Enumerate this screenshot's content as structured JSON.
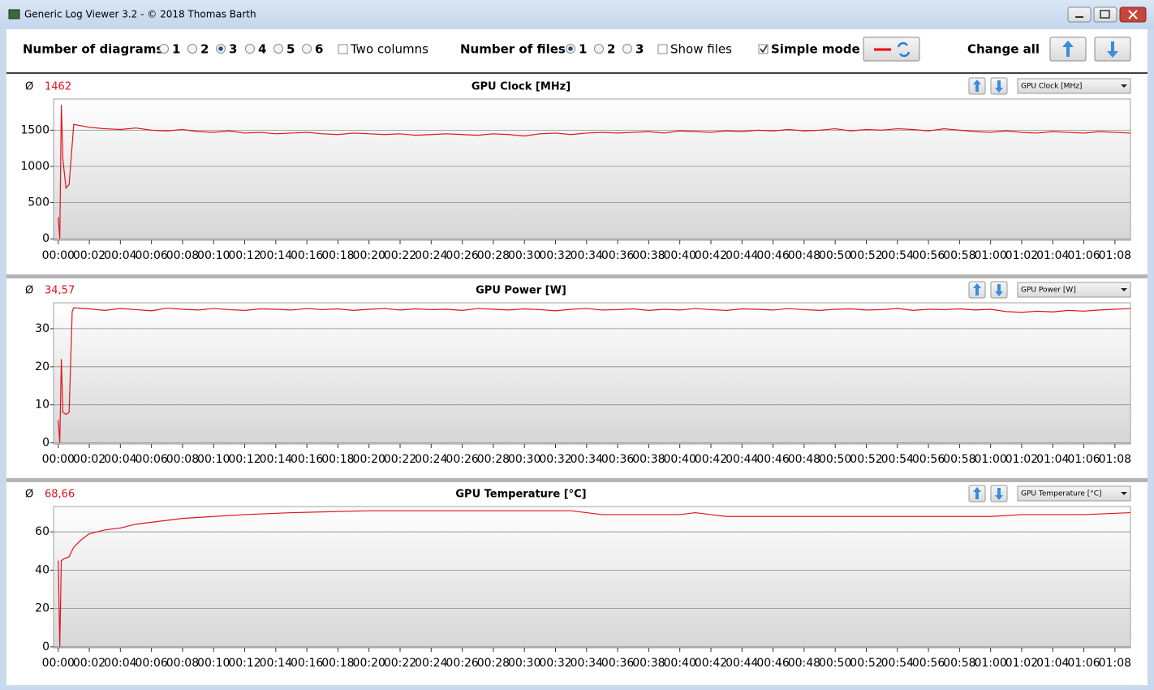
{
  "window": {
    "title": "Generic Log Viewer 3.2 - © 2018 Thomas Barth"
  },
  "toolbar": {
    "diagrams_label": "Number of diagrams",
    "diagram_options": [
      "1",
      "2",
      "3",
      "4",
      "5",
      "6"
    ],
    "two_columns": "Two columns",
    "files_label": "Number of files",
    "file_options": [
      "1",
      "2",
      "3"
    ],
    "show_files": "Show files",
    "simple_mode": "Simple mode",
    "change_all": "Change all"
  },
  "chart_data": [
    {
      "type": "line",
      "title": "GPU Clock [MHz]",
      "avg_symbol": "Ø",
      "avg": "1462",
      "selector": "GPU Clock [MHz]",
      "x": [
        0,
        0.1,
        0.2,
        0.3,
        0.5,
        0.7,
        1,
        2,
        3,
        4,
        5,
        6,
        7,
        8,
        9,
        10,
        11,
        12,
        13,
        14,
        15,
        16,
        17,
        18,
        19,
        20,
        21,
        22,
        23,
        24,
        25,
        26,
        27,
        28,
        29,
        30,
        31,
        32,
        33,
        34,
        35,
        36,
        37,
        38,
        39,
        40,
        41,
        42,
        43,
        44,
        45,
        46,
        47,
        48,
        49,
        50,
        51,
        52,
        53,
        54,
        55,
        56,
        57,
        58,
        59,
        60,
        61,
        62,
        63,
        64,
        65,
        66,
        67,
        68,
        69
      ],
      "series": [
        {
          "color": "#e0141e",
          "values": [
            300,
            0,
            1850,
            1100,
            700,
            750,
            1580,
            1540,
            1520,
            1510,
            1530,
            1500,
            1490,
            1510,
            1480,
            1470,
            1490,
            1460,
            1470,
            1450,
            1460,
            1470,
            1450,
            1440,
            1460,
            1450,
            1440,
            1450,
            1430,
            1440,
            1450,
            1440,
            1430,
            1450,
            1440,
            1420,
            1450,
            1460,
            1440,
            1460,
            1470,
            1460,
            1470,
            1480,
            1460,
            1490,
            1480,
            1470,
            1490,
            1480,
            1500,
            1490,
            1510,
            1490,
            1500,
            1520,
            1490,
            1510,
            1500,
            1520,
            1510,
            1490,
            1520,
            1500,
            1480,
            1470,
            1490,
            1470,
            1460,
            1480,
            1470,
            1460,
            1480,
            1470,
            1460
          ]
        }
      ],
      "xlim": [
        -0.3,
        69
      ],
      "ylim": [
        -20,
        1930
      ],
      "yticks": [
        0,
        500,
        1000,
        1500
      ],
      "grid": true,
      "xticks": [
        {
          "value": 0,
          "label": "00:00"
        },
        {
          "value": 2,
          "label": "00:02"
        },
        {
          "value": 4,
          "label": "00:04"
        },
        {
          "value": 6,
          "label": "00:06"
        },
        {
          "value": 8,
          "label": "00:08"
        },
        {
          "value": 10,
          "label": "00:10"
        },
        {
          "value": 12,
          "label": "00:12"
        },
        {
          "value": 14,
          "label": "00:14"
        },
        {
          "value": 16,
          "label": "00:16"
        },
        {
          "value": 18,
          "label": "00:18"
        },
        {
          "value": 20,
          "label": "00:20"
        },
        {
          "value": 22,
          "label": "00:22"
        },
        {
          "value": 24,
          "label": "00:24"
        },
        {
          "value": 26,
          "label": "00:26"
        },
        {
          "value": 28,
          "label": "00:28"
        },
        {
          "value": 30,
          "label": "00:30"
        },
        {
          "value": 32,
          "label": "00:32"
        },
        {
          "value": 34,
          "label": "00:34"
        },
        {
          "value": 36,
          "label": "00:36"
        },
        {
          "value": 38,
          "label": "00:38"
        },
        {
          "value": 40,
          "label": "00:40"
        },
        {
          "value": 42,
          "label": "00:42"
        },
        {
          "value": 44,
          "label": "00:44"
        },
        {
          "value": 46,
          "label": "00:46"
        },
        {
          "value": 48,
          "label": "00:48"
        },
        {
          "value": 50,
          "label": "00:50"
        },
        {
          "value": 52,
          "label": "00:52"
        },
        {
          "value": 54,
          "label": "00:54"
        },
        {
          "value": 56,
          "label": "00:56"
        },
        {
          "value": 58,
          "label": "00:58"
        },
        {
          "value": 60,
          "label": "01:00"
        },
        {
          "value": 62,
          "label": "01:02"
        },
        {
          "value": 64,
          "label": "01:04"
        },
        {
          "value": 66,
          "label": "01:06"
        },
        {
          "value": 68,
          "label": "01:08"
        }
      ]
    },
    {
      "type": "line",
      "title": "GPU Power [W]",
      "avg_symbol": "Ø",
      "avg": "34,57",
      "selector": "GPU Power [W]",
      "x": [
        0,
        0.1,
        0.2,
        0.3,
        0.5,
        0.7,
        0.9,
        1,
        2,
        3,
        4,
        5,
        6,
        7,
        8,
        9,
        10,
        11,
        12,
        13,
        14,
        15,
        16,
        17,
        18,
        19,
        20,
        21,
        22,
        23,
        24,
        25,
        26,
        27,
        28,
        29,
        30,
        31,
        32,
        33,
        34,
        35,
        36,
        37,
        38,
        39,
        40,
        41,
        42,
        43,
        44,
        45,
        46,
        47,
        48,
        49,
        50,
        51,
        52,
        53,
        54,
        55,
        56,
        57,
        58,
        59,
        60,
        61,
        62,
        63,
        64,
        65,
        66,
        67,
        68,
        69
      ],
      "series": [
        {
          "color": "#e0141e",
          "values": [
            6,
            0,
            22,
            8,
            7.5,
            8,
            34.5,
            35.5,
            35.2,
            34.8,
            35.3,
            35.0,
            34.7,
            35.4,
            35.1,
            34.9,
            35.3,
            35.0,
            34.8,
            35.2,
            35.1,
            34.9,
            35.3,
            35.0,
            35.2,
            34.8,
            35.1,
            35.3,
            34.9,
            35.2,
            35.0,
            35.1,
            34.8,
            35.3,
            35.1,
            34.9,
            35.2,
            35.0,
            34.7,
            35.1,
            35.3,
            34.9,
            35.0,
            35.2,
            34.8,
            35.1,
            34.9,
            35.3,
            35.0,
            34.8,
            35.2,
            35.1,
            34.9,
            35.3,
            35.0,
            34.8,
            35.1,
            35.2,
            34.9,
            35.0,
            35.3,
            34.8,
            35.1,
            35.0,
            35.2,
            34.9,
            35.1,
            34.5,
            34.3,
            34.6,
            34.4,
            34.8,
            34.6,
            34.9,
            35.1,
            35.3
          ]
        }
      ],
      "xlim": [
        -0.3,
        69
      ],
      "ylim": [
        -0.3,
        36.8
      ],
      "yticks": [
        0,
        10,
        20,
        30
      ],
      "grid": true,
      "xticks": [
        {
          "value": 0,
          "label": "00:00"
        },
        {
          "value": 2,
          "label": "00:02"
        },
        {
          "value": 4,
          "label": "00:04"
        },
        {
          "value": 6,
          "label": "00:06"
        },
        {
          "value": 8,
          "label": "00:08"
        },
        {
          "value": 10,
          "label": "00:10"
        },
        {
          "value": 12,
          "label": "00:12"
        },
        {
          "value": 14,
          "label": "00:14"
        },
        {
          "value": 16,
          "label": "00:16"
        },
        {
          "value": 18,
          "label": "00:18"
        },
        {
          "value": 20,
          "label": "00:20"
        },
        {
          "value": 22,
          "label": "00:22"
        },
        {
          "value": 24,
          "label": "00:24"
        },
        {
          "value": 26,
          "label": "00:26"
        },
        {
          "value": 28,
          "label": "00:28"
        },
        {
          "value": 30,
          "label": "00:30"
        },
        {
          "value": 32,
          "label": "00:32"
        },
        {
          "value": 34,
          "label": "00:34"
        },
        {
          "value": 36,
          "label": "00:36"
        },
        {
          "value": 38,
          "label": "00:38"
        },
        {
          "value": 40,
          "label": "00:40"
        },
        {
          "value": 42,
          "label": "00:42"
        },
        {
          "value": 44,
          "label": "00:44"
        },
        {
          "value": 46,
          "label": "00:46"
        },
        {
          "value": 48,
          "label": "00:48"
        },
        {
          "value": 50,
          "label": "00:50"
        },
        {
          "value": 52,
          "label": "00:52"
        },
        {
          "value": 54,
          "label": "00:54"
        },
        {
          "value": 56,
          "label": "00:56"
        },
        {
          "value": 58,
          "label": "00:58"
        },
        {
          "value": 60,
          "label": "01:00"
        },
        {
          "value": 62,
          "label": "01:02"
        },
        {
          "value": 64,
          "label": "01:04"
        },
        {
          "value": 66,
          "label": "01:06"
        },
        {
          "value": 68,
          "label": "01:08"
        }
      ]
    },
    {
      "type": "line",
      "title": "GPU Temperature [°C]",
      "avg_symbol": "Ø",
      "avg": "68,66",
      "selector": "GPU Temperature [°C]",
      "x": [
        0,
        0.1,
        0.2,
        0.4,
        0.7,
        1,
        1.5,
        2,
        3,
        4,
        5,
        6,
        7,
        8,
        10,
        12,
        15,
        20,
        25,
        30,
        33,
        34,
        35,
        40,
        41,
        42,
        43,
        50,
        55,
        60,
        62,
        66,
        69
      ],
      "series": [
        {
          "color": "#e0141e",
          "values": [
            45,
            0,
            45,
            46,
            47,
            52,
            56,
            59,
            61,
            62,
            64,
            65,
            66,
            67,
            68,
            69,
            70,
            71,
            71,
            71,
            71,
            70,
            69,
            69,
            70,
            69,
            68,
            68,
            68,
            68,
            69,
            69,
            70
          ]
        }
      ],
      "xlim": [
        -0.3,
        69
      ],
      "ylim": [
        -0.5,
        73.2
      ],
      "yticks": [
        0,
        20,
        40,
        60
      ],
      "grid": true,
      "xticks": [
        {
          "value": 0,
          "label": "00:00"
        },
        {
          "value": 2,
          "label": "00:02"
        },
        {
          "value": 4,
          "label": "00:04"
        },
        {
          "value": 6,
          "label": "00:06"
        },
        {
          "value": 8,
          "label": "00:08"
        },
        {
          "value": 10,
          "label": "00:10"
        },
        {
          "value": 12,
          "label": "00:12"
        },
        {
          "value": 14,
          "label": "00:14"
        },
        {
          "value": 16,
          "label": "00:16"
        },
        {
          "value": 18,
          "label": "00:18"
        },
        {
          "value": 20,
          "label": "00:20"
        },
        {
          "value": 22,
          "label": "00:22"
        },
        {
          "value": 24,
          "label": "00:24"
        },
        {
          "value": 26,
          "label": "00:26"
        },
        {
          "value": 28,
          "label": "00:28"
        },
        {
          "value": 30,
          "label": "00:30"
        },
        {
          "value": 32,
          "label": "00:32"
        },
        {
          "value": 34,
          "label": "00:34"
        },
        {
          "value": 36,
          "label": "00:36"
        },
        {
          "value": 38,
          "label": "00:38"
        },
        {
          "value": 40,
          "label": "00:40"
        },
        {
          "value": 42,
          "label": "00:42"
        },
        {
          "value": 44,
          "label": "00:44"
        },
        {
          "value": 46,
          "label": "00:46"
        },
        {
          "value": 48,
          "label": "00:48"
        },
        {
          "value": 50,
          "label": "00:50"
        },
        {
          "value": 52,
          "label": "00:52"
        },
        {
          "value": 54,
          "label": "00:54"
        },
        {
          "value": 56,
          "label": "00:56"
        },
        {
          "value": 58,
          "label": "00:58"
        },
        {
          "value": 60,
          "label": "01:00"
        },
        {
          "value": 62,
          "label": "01:02"
        },
        {
          "value": 64,
          "label": "01:04"
        },
        {
          "value": 66,
          "label": "01:06"
        },
        {
          "value": 68,
          "label": "01:08"
        }
      ]
    }
  ]
}
